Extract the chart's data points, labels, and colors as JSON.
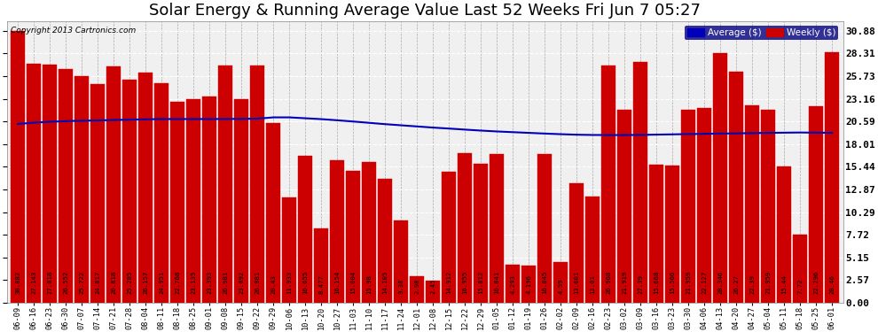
{
  "title": "Solar Energy & Running Average Value Last 52 Weeks Fri Jun 7 05:27",
  "copyright": "Copyright 2013 Cartronics.com",
  "categories": [
    "06-09",
    "06-16",
    "06-23",
    "06-30",
    "07-07",
    "07-14",
    "07-21",
    "07-28",
    "08-04",
    "08-11",
    "08-18",
    "08-25",
    "09-01",
    "09-08",
    "09-15",
    "09-22",
    "09-29",
    "10-06",
    "10-13",
    "10-20",
    "10-27",
    "11-03",
    "11-10",
    "11-17",
    "11-24",
    "12-01",
    "12-08",
    "12-15",
    "12-22",
    "12-29",
    "01-05",
    "01-12",
    "01-19",
    "01-26",
    "02-02",
    "02-09",
    "02-16",
    "02-23",
    "03-02",
    "03-09",
    "03-16",
    "03-23",
    "03-30",
    "04-06",
    "04-13",
    "04-20",
    "04-27",
    "05-04",
    "05-11",
    "05-18",
    "05-25",
    "06-01"
  ],
  "weekly_values": [
    30.882,
    27.143,
    27.018,
    26.552,
    25.722,
    24.817,
    26.818,
    25.285,
    26.157,
    24.951,
    22.768,
    23.135,
    23.393,
    26.981,
    23.092,
    26.981,
    20.43,
    11.933,
    16.655,
    8.477,
    16.154,
    15.004,
    15.98,
    14.105,
    9.38,
    2.98,
    2.45,
    14.912,
    16.955,
    15.812,
    16.841,
    4.293,
    4.196,
    16.845,
    4.59,
    13.601,
    12.01,
    26.968,
    21.919,
    27.39,
    15.668,
    15.566,
    21.959,
    22.127,
    28.346,
    26.27,
    22.39,
    21.959,
    15.44,
    7.72,
    22.296,
    28.46
  ],
  "average_values": [
    20.3,
    20.45,
    20.55,
    20.62,
    20.67,
    20.7,
    20.75,
    20.79,
    20.83,
    20.86,
    20.86,
    20.86,
    20.86,
    20.87,
    20.88,
    20.9,
    21.05,
    21.05,
    20.95,
    20.85,
    20.72,
    20.58,
    20.43,
    20.28,
    20.15,
    20.02,
    19.89,
    19.78,
    19.66,
    19.55,
    19.45,
    19.37,
    19.29,
    19.21,
    19.14,
    19.08,
    19.05,
    19.04,
    19.04,
    19.06,
    19.09,
    19.12,
    19.15,
    19.18,
    19.21,
    19.23,
    19.26,
    19.29,
    19.31,
    19.33,
    19.31,
    19.29
  ],
  "bar_value_labels": [
    "30.882",
    "27.143",
    "27.018",
    "26.552",
    "25.722",
    "24.817",
    "26.818",
    "25.285",
    "26.157",
    "24.951",
    "22.768",
    "23.135",
    "23.393",
    "26.981",
    "23.092",
    "26.981",
    "20.43",
    "11.933",
    "16.655",
    "8.477",
    "16.154",
    "15.004",
    "15.98",
    "14.105",
    "9.38",
    "2.98",
    "2.45",
    "14.912",
    "16.955",
    "15.812",
    "16.841",
    "4.293",
    "4.196",
    "16.845",
    "4.59",
    "13.601",
    "12.01",
    "26.968",
    "21.919",
    "27.39",
    "15.668",
    "15.566",
    "21.959",
    "22.127",
    "28.346",
    "26.27",
    "22.39",
    "21.959",
    "15.44",
    "7.72",
    "22.296",
    "28.46"
  ],
  "bar_color": "#cc0000",
  "bar_edge_color": "#cc0000",
  "avg_line_color": "#0000bb",
  "background_color": "#ffffff",
  "plot_bg_color": "#f0f0f0",
  "grid_color_h": "#ffffff",
  "grid_color_v": "#aaaaaa",
  "title_fontsize": 13,
  "ylabel_right": [
    "30.88",
    "28.31",
    "25.73",
    "23.16",
    "20.59",
    "18.01",
    "15.44",
    "12.87",
    "10.29",
    "7.72",
    "5.15",
    "2.57",
    "0.00"
  ],
  "ylim_max": 32.0,
  "yticks": [
    0.0,
    2.57,
    5.15,
    7.72,
    10.29,
    12.87,
    15.44,
    18.01,
    20.59,
    23.16,
    25.73,
    28.31,
    30.88
  ],
  "legend_avg_label": "Average ($)",
  "legend_weekly_label": "Weekly ($)"
}
